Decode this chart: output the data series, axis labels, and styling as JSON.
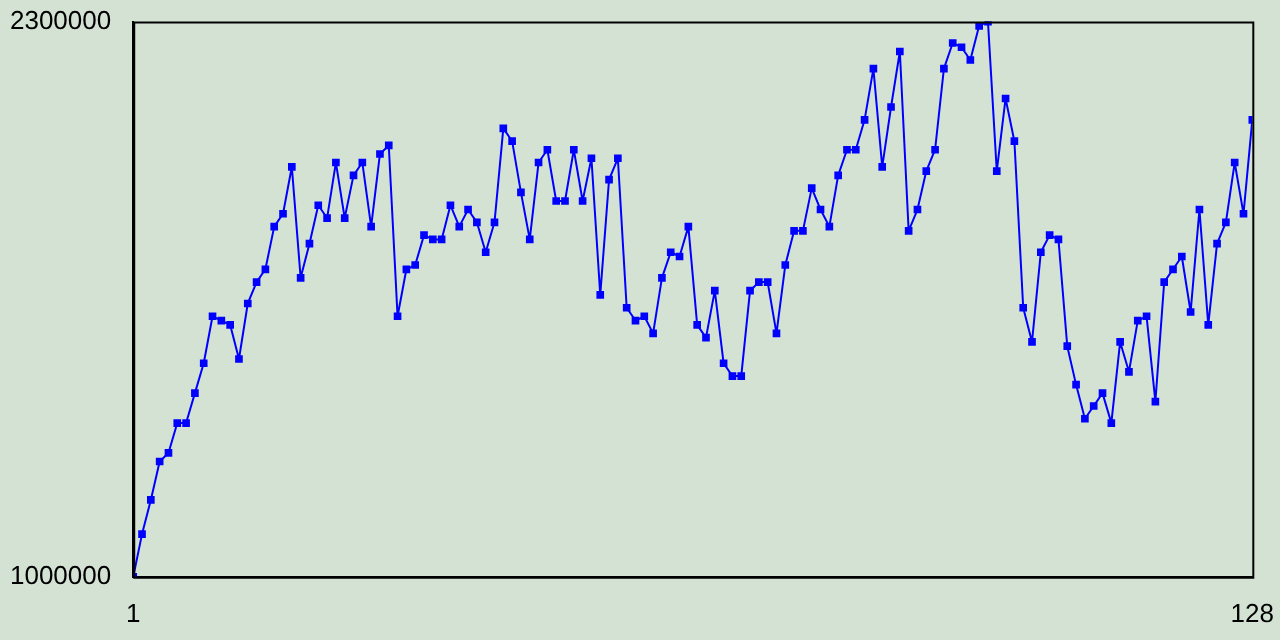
{
  "chart_data": {
    "type": "line",
    "x": [
      1,
      2,
      3,
      4,
      5,
      6,
      7,
      8,
      9,
      10,
      11,
      12,
      13,
      14,
      15,
      16,
      17,
      18,
      19,
      20,
      21,
      22,
      23,
      24,
      25,
      26,
      27,
      28,
      29,
      30,
      31,
      32,
      33,
      34,
      35,
      36,
      37,
      38,
      39,
      40,
      41,
      42,
      43,
      44,
      45,
      46,
      47,
      48,
      49,
      50,
      51,
      52,
      53,
      54,
      55,
      56,
      57,
      58,
      59,
      60,
      61,
      62,
      63,
      64,
      65,
      66,
      67,
      68,
      69,
      70,
      71,
      72,
      73,
      74,
      75,
      76,
      77,
      78,
      79,
      80,
      81,
      82,
      83,
      84,
      85,
      86,
      87,
      88,
      89,
      90,
      91,
      92,
      93,
      94,
      95,
      96,
      97,
      98,
      99,
      100,
      101,
      102,
      103,
      104,
      105,
      106,
      107,
      108,
      109,
      110,
      111,
      112,
      113,
      114,
      115,
      116,
      117,
      118,
      119,
      120,
      121,
      122,
      123,
      124,
      125,
      126,
      127,
      128
    ],
    "series": [
      {
        "color": "#0000ff",
        "values": [
          1000000,
          1100000,
          1180000,
          1270000,
          1290000,
          1360000,
          1360000,
          1430000,
          1500000,
          1610000,
          1600000,
          1590000,
          1510000,
          1640000,
          1690000,
          1720000,
          1820000,
          1850000,
          1960000,
          1700000,
          1780000,
          1870000,
          1840000,
          1970000,
          1840000,
          1940000,
          1970000,
          1820000,
          1990000,
          2010000,
          1610000,
          1720000,
          1730000,
          1800000,
          1790000,
          1790000,
          1870000,
          1820000,
          1860000,
          1830000,
          1760000,
          1830000,
          2050000,
          2020000,
          1900000,
          1790000,
          1970000,
          2000000,
          1880000,
          1880000,
          2000000,
          1880000,
          1980000,
          1660000,
          1930000,
          1980000,
          1630000,
          1600000,
          1610000,
          1570000,
          1700000,
          1760000,
          1750000,
          1820000,
          1590000,
          1560000,
          1670000,
          1500000,
          1470000,
          1470000,
          1670000,
          1690000,
          1690000,
          1570000,
          1730000,
          1810000,
          1810000,
          1910000,
          1860000,
          1820000,
          1940000,
          2000000,
          2000000,
          2070000,
          2190000,
          1960000,
          2100000,
          2230000,
          1810000,
          1860000,
          1950000,
          2000000,
          2190000,
          2250000,
          2240000,
          2210000,
          2290000,
          2300000,
          1950000,
          2120000,
          2020000,
          1630000,
          1550000,
          1760000,
          1800000,
          1790000,
          1540000,
          1450000,
          1370000,
          1400000,
          1430000,
          1360000,
          1550000,
          1480000,
          1600000,
          1610000,
          1410000,
          1690000,
          1720000,
          1750000,
          1620000,
          1860000,
          1590000,
          1780000,
          1830000,
          1970000,
          1850000,
          2070000
        ]
      }
    ],
    "xlim": [
      1,
      128
    ],
    "xticks": [
      1,
      128
    ],
    "ylim": [
      1000000,
      2300000
    ],
    "yticks": [
      1000000,
      2300000
    ],
    "marker": "square",
    "line_style": "solid",
    "grid": false,
    "legend": false
  }
}
